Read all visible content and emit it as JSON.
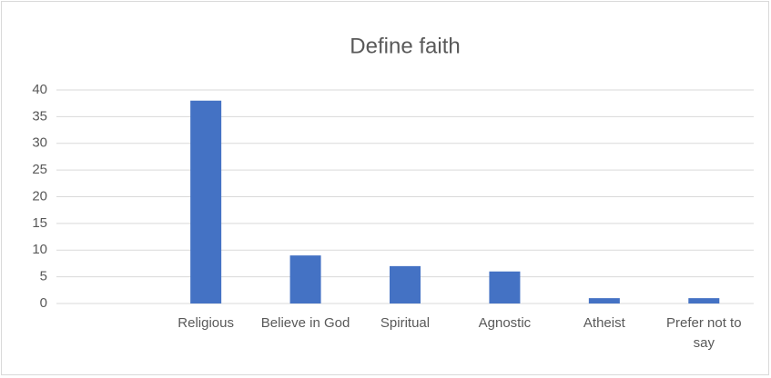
{
  "chart_data": {
    "type": "bar",
    "title": "Define faith",
    "categories": [
      null,
      "Religious",
      "Believe in God",
      "Spiritual",
      "Agnostic",
      "Atheist",
      "Prefer not to say"
    ],
    "values": [
      null,
      38,
      9,
      7,
      6,
      1,
      1
    ],
    "color": "#4472c4",
    "ylim": [
      0,
      40
    ],
    "yticks": [
      0,
      5,
      10,
      15,
      20,
      25,
      30,
      35,
      40
    ],
    "grid": true
  }
}
